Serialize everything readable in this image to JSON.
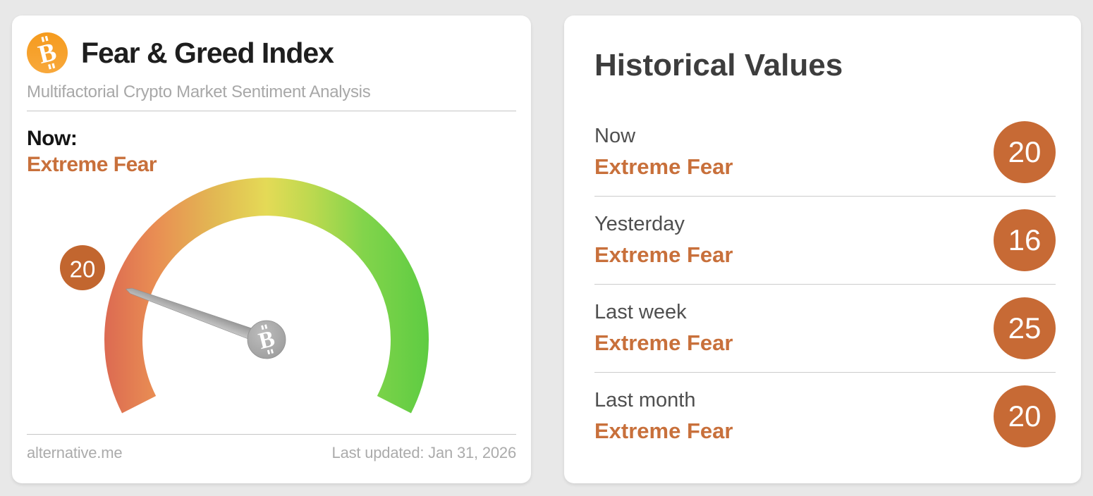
{
  "colors": {
    "background": "#e8e8e8",
    "card": "#ffffff",
    "accent_orange_text": "#c8703b",
    "badge_orange": "#c76a35",
    "gauge_badge_orange": "#c2662f",
    "bitcoin_orange": "#f7941a",
    "needle_gray": "#a9a9a9",
    "gauge_gradient": [
      "#dc6a52",
      "#e98e53",
      "#e2b853",
      "#e4da56",
      "#bcd94f",
      "#82d44b",
      "#5ecc42"
    ]
  },
  "gauge_card": {
    "title": "Fear & Greed Index",
    "subtitle": "Multifactorial Crypto Market Sentiment Analysis",
    "now_label": "Now:",
    "now_sentiment": "Extreme Fear",
    "source": "alternative.me",
    "last_updated": "Last updated: Jan 31, 2026"
  },
  "chart_data": [
    {
      "type": "gauge",
      "title": "Fear & Greed Index",
      "value": 20,
      "value_label": "20",
      "sentiment": "Extreme Fear",
      "min": 0,
      "max": 100,
      "sweep_degrees": 234,
      "scale": "0 = Extreme Fear (red, bottom-left) through yellow (top) to 100 = Extreme Greed (green, bottom-right)",
      "needle": "gray needle with Bitcoin hub pointing at 20"
    },
    {
      "type": "table",
      "title": "Historical Values",
      "categories": [
        "Now",
        "Yesterday",
        "Last week",
        "Last month"
      ],
      "values": [
        20,
        16,
        25,
        20
      ],
      "labels": [
        "Extreme Fear",
        "Extreme Fear",
        "Extreme Fear",
        "Extreme Fear"
      ]
    }
  ],
  "historical": {
    "title": "Historical Values",
    "rows": [
      {
        "label": "Now",
        "sentiment": "Extreme Fear",
        "value": "20"
      },
      {
        "label": "Yesterday",
        "sentiment": "Extreme Fear",
        "value": "16"
      },
      {
        "label": "Last week",
        "sentiment": "Extreme Fear",
        "value": "25"
      },
      {
        "label": "Last month",
        "sentiment": "Extreme Fear",
        "value": "20"
      }
    ]
  }
}
